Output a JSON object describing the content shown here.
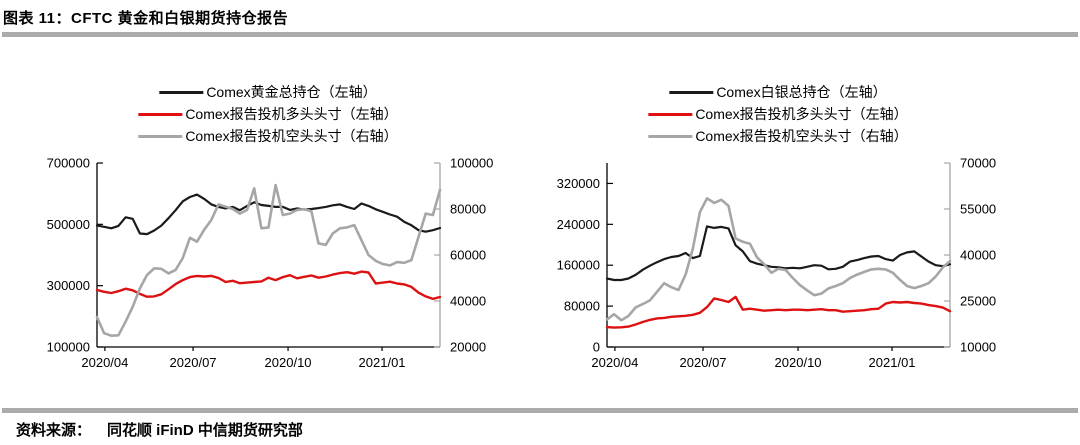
{
  "header": {
    "title": "图表 11：CFTC 黄金和白银期货持仓报告"
  },
  "footer": {
    "source_label": "资料来源：",
    "source_text": "同花顺 iFinD 中信期货研究部"
  },
  "colors": {
    "divider": "#ababab",
    "axis_left": "#000000",
    "axis_right": "#a6a6a6"
  },
  "chart_data": [
    {
      "type": "line",
      "title": "",
      "legend": [
        {
          "label": "Comex黄金总持仓（左轴）",
          "color": "#1a1a1a"
        },
        {
          "label": "Comex报告投机多头头寸（左轴）",
          "color": "#dd1111"
        },
        {
          "label": "Comex报告投机空头头寸（右轴）",
          "color": "#a6a6a6"
        }
      ],
      "x_ticks": [
        {
          "label": "2020/04",
          "f": 0.023
        },
        {
          "label": "2020/07",
          "f": 0.28
        },
        {
          "label": "2020/10",
          "f": 0.557
        },
        {
          "label": "2021/01",
          "f": 0.831
        }
      ],
      "left_axis": {
        "min": 100000,
        "max": 700000,
        "ticks": [
          700000,
          500000,
          300000,
          100000
        ]
      },
      "right_axis": {
        "min": 20000,
        "max": 100000,
        "ticks": [
          100000,
          80000,
          60000,
          40000,
          20000
        ]
      },
      "series": [
        {
          "name": "Comex黄金总持仓",
          "axis": "left",
          "color": "#1a1a1a",
          "width": 2.2,
          "values": [
            496000,
            492000,
            487000,
            495000,
            523000,
            518000,
            470000,
            468000,
            480000,
            496000,
            520000,
            546000,
            575000,
            589000,
            597000,
            583000,
            565000,
            557000,
            552000,
            557000,
            546000,
            560000,
            572000,
            563000,
            560000,
            557000,
            557000,
            547000,
            552000,
            548000,
            550000,
            553000,
            557000,
            562000,
            565000,
            557000,
            550000,
            568000,
            560000,
            549000,
            541000,
            532000,
            525000,
            508000,
            497000,
            481000,
            476000,
            481000,
            488000
          ]
        },
        {
          "name": "Comex报告投机多头头寸",
          "axis": "left",
          "color": "#dd1111",
          "width": 2.4,
          "values": [
            286000,
            280000,
            276000,
            282000,
            290000,
            285000,
            273000,
            264000,
            265000,
            272000,
            288000,
            305000,
            318000,
            328000,
            332000,
            330000,
            332000,
            325000,
            312000,
            316000,
            308000,
            310000,
            312000,
            314000,
            326000,
            318000,
            328000,
            334000,
            324000,
            329000,
            333000,
            326000,
            330000,
            336000,
            341000,
            344000,
            339000,
            346000,
            343000,
            307000,
            310000,
            313000,
            307000,
            304000,
            296000,
            277000,
            265000,
            257000,
            263000
          ]
        },
        {
          "name": "Comex报告投机空头头寸",
          "axis": "right",
          "color": "#a6a6a6",
          "width": 2.6,
          "values": [
            33000,
            26000,
            24900,
            25100,
            31000,
            37500,
            45500,
            51300,
            54200,
            54000,
            52000,
            53500,
            58700,
            67500,
            65800,
            71000,
            75200,
            82000,
            81000,
            80000,
            78000,
            79600,
            89000,
            71600,
            72000,
            90400,
            77400,
            78000,
            79600,
            79900,
            79000,
            65100,
            64400,
            69400,
            71600,
            72000,
            73000,
            66500,
            60000,
            57500,
            56100,
            55500,
            56900,
            56600,
            57800,
            68000,
            78000,
            77400,
            88300
          ]
        }
      ]
    },
    {
      "type": "line",
      "title": "",
      "legend": [
        {
          "label": "Comex白银总持仓（左轴）",
          "color": "#1a1a1a"
        },
        {
          "label": "Comex报告投机多头头寸（左轴）",
          "color": "#dd1111"
        },
        {
          "label": "Comex报告投机空头头寸（右轴）",
          "color": "#a6a6a6"
        }
      ],
      "x_ticks": [
        {
          "label": "2020/04",
          "f": 0.023
        },
        {
          "label": "2020/07",
          "f": 0.28
        },
        {
          "label": "2020/10",
          "f": 0.557
        },
        {
          "label": "2021/01",
          "f": 0.831
        }
      ],
      "left_axis": {
        "min": 0,
        "max": 360000,
        "ticks": [
          320000,
          240000,
          160000,
          80000,
          0
        ]
      },
      "right_axis": {
        "min": 10000,
        "max": 70000,
        "ticks": [
          70000,
          55000,
          40000,
          25000,
          10000
        ]
      },
      "series": [
        {
          "name": "Comex白银总持仓",
          "axis": "left",
          "color": "#1a1a1a",
          "width": 2.2,
          "values": [
            134000,
            131000,
            131000,
            134000,
            141000,
            151000,
            159000,
            166000,
            172000,
            176000,
            178000,
            184000,
            174000,
            178000,
            236000,
            233000,
            235000,
            232000,
            199000,
            187000,
            168000,
            163000,
            160000,
            157000,
            156000,
            154000,
            155000,
            154000,
            157000,
            160000,
            159000,
            152000,
            153000,
            157000,
            167000,
            170000,
            174000,
            177000,
            178000,
            172000,
            169000,
            180000,
            185000,
            187000,
            177000,
            167000,
            160000,
            158000,
            162000
          ]
        },
        {
          "name": "Comex报告投机多头头寸",
          "axis": "left",
          "color": "#dd1111",
          "width": 2.4,
          "values": [
            39000,
            38000,
            38500,
            40000,
            44000,
            49000,
            53000,
            56000,
            57000,
            59000,
            60000,
            61000,
            63000,
            67000,
            78000,
            95000,
            92000,
            88000,
            98000,
            73000,
            75000,
            73000,
            71000,
            72000,
            73000,
            72000,
            73000,
            73000,
            72000,
            73000,
            74000,
            72000,
            72000,
            69000,
            70000,
            71000,
            72000,
            74000,
            75000,
            85000,
            88000,
            87000,
            88000,
            86000,
            85000,
            82000,
            80000,
            77000,
            70000
          ]
        },
        {
          "name": "Comex报告投机空头头寸",
          "axis": "right",
          "color": "#a6a6a6",
          "width": 2.6,
          "values": [
            19000,
            20700,
            18700,
            20100,
            22900,
            24000,
            25200,
            28000,
            30800,
            29500,
            28600,
            33600,
            42000,
            54000,
            58500,
            57000,
            58000,
            56000,
            45400,
            44300,
            43700,
            39200,
            37000,
            34200,
            35500,
            35100,
            32500,
            30200,
            28500,
            26900,
            27400,
            29100,
            29900,
            30800,
            32500,
            33600,
            34500,
            35300,
            35500,
            35300,
            34200,
            31900,
            29900,
            29200,
            29900,
            30800,
            33000,
            36000,
            38000
          ]
        }
      ]
    }
  ]
}
